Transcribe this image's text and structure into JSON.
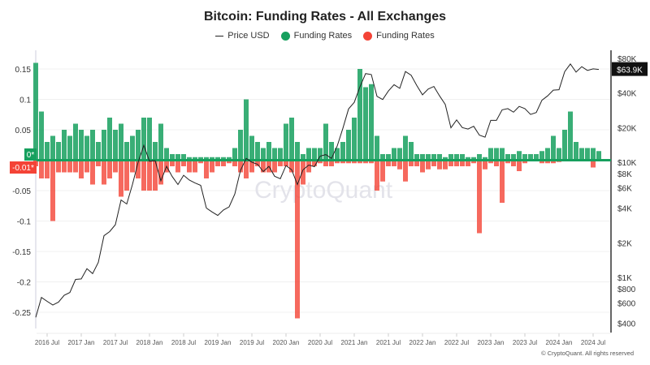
{
  "chart_data": {
    "type": "bar",
    "title": "Bitcoin: Funding Rates - All Exchanges",
    "legend": [
      {
        "name": "Price USD",
        "type": "line",
        "color": "#222222"
      },
      {
        "name": "Funding Rates",
        "type": "bar",
        "color": "#16a05e"
      },
      {
        "name": "Funding Rates",
        "type": "bar",
        "color": "#f44336"
      }
    ],
    "legend_placement": "top",
    "watermark": "CryptoQuant",
    "copyright": "© CryptoQuant. All rights reserved",
    "grid": true,
    "y_left": {
      "ticks": [
        "0.15",
        "0.1",
        "0.05",
        "-0.05",
        "-0.1",
        "-0.15",
        "-0.2",
        "-0.25"
      ],
      "tick_values": [
        0.15,
        0.1,
        0.05,
        -0.05,
        -0.1,
        -0.15,
        -0.2,
        -0.25
      ],
      "range": [
        -0.26,
        0.17
      ]
    },
    "y_right": {
      "scale": "log",
      "ticks": [
        "$80K",
        "$40K",
        "$20K",
        "$10K",
        "$8K",
        "$6K",
        "$4K",
        "$2K",
        "$1K",
        "$800",
        "$600",
        "$400"
      ],
      "tick_values": [
        80000,
        40000,
        20000,
        10000,
        8000,
        6000,
        4000,
        2000,
        1000,
        800,
        600,
        400
      ]
    },
    "x_ticks": [
      "2016 Jul",
      "2017 Jan",
      "2017 Jul",
      "2018 Jan",
      "2018 Jul",
      "2019 Jan",
      "2019 Jul",
      "2020 Jan",
      "2020 Jul",
      "2021 Jan",
      "2021 Jul",
      "2022 Jan",
      "2022 Jul",
      "2023 Jan",
      "2023 Jul",
      "2024 Jan",
      "2024 Jul"
    ],
    "markers": {
      "pos_label": "0*",
      "neg_label": "-0.01*",
      "price_label": "$63.9K"
    },
    "colors": {
      "positive": "#16a05e",
      "negative": "#f44336",
      "price": "#222222"
    },
    "months": [
      "2016-05",
      "2016-06",
      "2016-07",
      "2016-08",
      "2016-09",
      "2016-10",
      "2016-11",
      "2016-12",
      "2017-01",
      "2017-02",
      "2017-03",
      "2017-04",
      "2017-05",
      "2017-06",
      "2017-07",
      "2017-08",
      "2017-09",
      "2017-10",
      "2017-11",
      "2017-12",
      "2018-01",
      "2018-02",
      "2018-03",
      "2018-04",
      "2018-05",
      "2018-06",
      "2018-07",
      "2018-08",
      "2018-09",
      "2018-10",
      "2018-11",
      "2018-12",
      "2019-01",
      "2019-02",
      "2019-03",
      "2019-04",
      "2019-05",
      "2019-06",
      "2019-07",
      "2019-08",
      "2019-09",
      "2019-10",
      "2019-11",
      "2019-12",
      "2020-01",
      "2020-02",
      "2020-03",
      "2020-04",
      "2020-05",
      "2020-06",
      "2020-07",
      "2020-08",
      "2020-09",
      "2020-10",
      "2020-11",
      "2020-12",
      "2021-01",
      "2021-02",
      "2021-03",
      "2021-04",
      "2021-05",
      "2021-06",
      "2021-07",
      "2021-08",
      "2021-09",
      "2021-10",
      "2021-11",
      "2021-12",
      "2022-01",
      "2022-02",
      "2022-03",
      "2022-04",
      "2022-05",
      "2022-06",
      "2022-07",
      "2022-08",
      "2022-09",
      "2022-10",
      "2022-11",
      "2022-12",
      "2023-01",
      "2023-02",
      "2023-03",
      "2023-04",
      "2023-05",
      "2023-06",
      "2023-07",
      "2023-08",
      "2023-09",
      "2023-10",
      "2023-11",
      "2023-12",
      "2024-01",
      "2024-02",
      "2024-03",
      "2024-04",
      "2024-05",
      "2024-06",
      "2024-07",
      "2024-08"
    ],
    "price_usd": [
      450,
      670,
      620,
      575,
      610,
      700,
      740,
      960,
      970,
      1190,
      1080,
      1350,
      2300,
      2500,
      2870,
      4700,
      4340,
      6400,
      10000,
      14000,
      10200,
      10300,
      6900,
      9200,
      7500,
      6400,
      7700,
      7000,
      6600,
      6300,
      4000,
      3700,
      3450,
      3850,
      4100,
      5300,
      8500,
      10800,
      10000,
      9600,
      8300,
      9200,
      7550,
      7200,
      9350,
      8600,
      6400,
      8600,
      9450,
      9150,
      11300,
      11650,
      10800,
      13800,
      19700,
      29000,
      33100,
      45100,
      58800,
      57700,
      37300,
      35000,
      41500,
      47100,
      43800,
      61300,
      57000,
      46300,
      38500,
      43200,
      45500,
      37700,
      31800,
      19900,
      23300,
      20000,
      19400,
      20500,
      17200,
      16500,
      23100,
      23100,
      28500,
      29200,
      27200,
      30500,
      29200,
      26000,
      27000,
      34500,
      37700,
      42300,
      42600,
      61200,
      71300,
      60600,
      67500,
      62700,
      64600,
      63900
    ],
    "funding_positive": [
      0.16,
      0.08,
      0.03,
      0.04,
      0.03,
      0.05,
      0.04,
      0.06,
      0.05,
      0.04,
      0.05,
      0.03,
      0.05,
      0.07,
      0.05,
      0.06,
      0.03,
      0.04,
      0.05,
      0.07,
      0.07,
      0.03,
      0.06,
      0.02,
      0.01,
      0.01,
      0.01,
      0.005,
      0.005,
      0.005,
      0.005,
      0.005,
      0.005,
      0.005,
      0.005,
      0.02,
      0.05,
      0.1,
      0.04,
      0.03,
      0.02,
      0.03,
      0.02,
      0.02,
      0.06,
      0.07,
      0.03,
      0.01,
      0.02,
      0.02,
      0.02,
      0.06,
      0.03,
      0.02,
      0.03,
      0.05,
      0.07,
      0.15,
      0.12,
      0.125,
      0.04,
      0.01,
      0.01,
      0.02,
      0.02,
      0.04,
      0.03,
      0.01,
      0.01,
      0.01,
      0.01,
      0.01,
      0.005,
      0.01,
      0.01,
      0.01,
      0.005,
      0.005,
      0.01,
      0.005,
      0.02,
      0.02,
      0.02,
      0.01,
      0.01,
      0.015,
      0.01,
      0.01,
      0.01,
      0.015,
      0.02,
      0.04,
      0.02,
      0.05,
      0.08,
      0.03,
      0.02,
      0.02,
      0.02,
      0.015
    ],
    "funding_negative": [
      -0.01,
      -0.03,
      -0.03,
      -0.1,
      -0.02,
      -0.02,
      -0.02,
      -0.02,
      -0.03,
      -0.02,
      -0.04,
      -0.01,
      -0.04,
      -0.03,
      -0.02,
      -0.06,
      -0.05,
      -0.02,
      -0.03,
      -0.05,
      -0.05,
      -0.05,
      -0.04,
      -0.02,
      -0.01,
      -0.02,
      -0.01,
      -0.02,
      -0.02,
      -0.005,
      -0.03,
      -0.02,
      -0.01,
      -0.01,
      -0.005,
      -0.01,
      -0.02,
      -0.03,
      -0.02,
      -0.01,
      -0.02,
      -0.02,
      -0.02,
      -0.01,
      -0.01,
      -0.02,
      -0.26,
      -0.04,
      -0.02,
      -0.01,
      -0.005,
      -0.01,
      -0.01,
      -0.005,
      -0.005,
      -0.005,
      -0.005,
      -0.005,
      -0.005,
      -0.005,
      -0.05,
      -0.035,
      -0.01,
      -0.01,
      -0.015,
      -0.035,
      -0.01,
      -0.01,
      -0.02,
      -0.015,
      -0.01,
      -0.015,
      -0.015,
      -0.01,
      -0.01,
      -0.01,
      -0.01,
      -0.005,
      -0.12,
      -0.015,
      -0.005,
      -0.01,
      -0.07,
      -0.005,
      -0.01,
      -0.018,
      -0.005,
      -0.002,
      -0.002,
      -0.005,
      -0.005,
      -0.005,
      -0.003,
      0,
      0,
      0,
      0,
      0,
      -0.012,
      0
    ]
  }
}
